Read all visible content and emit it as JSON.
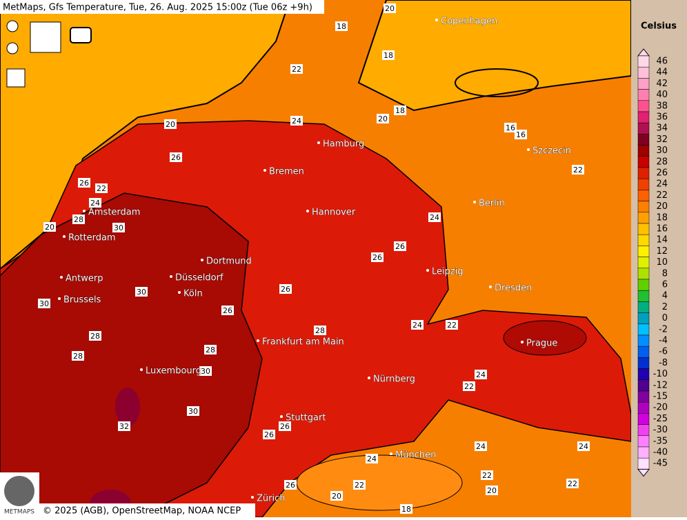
{
  "header": {
    "title": "MetMaps, Gfs Temperature, Tue, 26. Aug. 2025 15:00z (Tue 06z +9h)"
  },
  "footer": "© 2025 (AGB), OpenStreetMap, NOAA NCEP",
  "logo": "METMAPS",
  "legend": {
    "unit": "Celsius",
    "entries": [
      {
        "value": 46,
        "color": "#ffd8e8"
      },
      {
        "value": 44,
        "color": "#ffc0d8"
      },
      {
        "value": 42,
        "color": "#ffa0c8"
      },
      {
        "value": 40,
        "color": "#ff80b0"
      },
      {
        "value": 38,
        "color": "#ff5090"
      },
      {
        "value": 36,
        "color": "#e02070"
      },
      {
        "value": 34,
        "color": "#b01050"
      },
      {
        "value": 32,
        "color": "#800020"
      },
      {
        "value": 30,
        "color": "#a00000"
      },
      {
        "value": 28,
        "color": "#c80000"
      },
      {
        "value": 26,
        "color": "#e02000"
      },
      {
        "value": 24,
        "color": "#f04000"
      },
      {
        "value": 22,
        "color": "#ff6000"
      },
      {
        "value": 20,
        "color": "#ff8000"
      },
      {
        "value": 18,
        "color": "#ffa000"
      },
      {
        "value": 16,
        "color": "#ffc000"
      },
      {
        "value": 14,
        "color": "#ffd800"
      },
      {
        "value": 12,
        "color": "#fff000"
      },
      {
        "value": 10,
        "color": "#e0f000"
      },
      {
        "value": 8,
        "color": "#b0e000"
      },
      {
        "value": 6,
        "color": "#60d000"
      },
      {
        "value": 4,
        "color": "#20c030"
      },
      {
        "value": 2,
        "color": "#00b080"
      },
      {
        "value": 0,
        "color": "#00a0c0"
      },
      {
        "value": -2,
        "color": "#00c0ff"
      },
      {
        "value": -4,
        "color": "#0090ff"
      },
      {
        "value": -6,
        "color": "#0060f0"
      },
      {
        "value": -8,
        "color": "#0030d0"
      },
      {
        "value": -10,
        "color": "#2000b0"
      },
      {
        "value": -12,
        "color": "#500090"
      },
      {
        "value": -15,
        "color": "#8000a0"
      },
      {
        "value": -20,
        "color": "#b000c0"
      },
      {
        "value": -25,
        "color": "#d000e0"
      },
      {
        "value": -30,
        "color": "#f040f0"
      },
      {
        "value": -35,
        "color": "#ff80ff"
      },
      {
        "value": -40,
        "color": "#ffb0ff"
      },
      {
        "value": -45,
        "color": "#ffe0ff"
      }
    ]
  },
  "cities": [
    "Copenhagen",
    "Hamburg",
    "Szczecin",
    "Bremen",
    "Berlin",
    "Amsterdam",
    "Hannover",
    "Rotterdam",
    "Dortmund",
    "Leipzig",
    "Antwerp",
    "Düsseldorf",
    "Dresden",
    "Köln",
    "Brussels",
    "Frankfurt am Main",
    "Prague",
    "Luxembourg",
    "Nürnberg",
    "Stuttgart",
    "München",
    "Zürich"
  ],
  "contour_labels": [
    20,
    18,
    18,
    22,
    24,
    20,
    18,
    20,
    16,
    16,
    26,
    26,
    22,
    24,
    28,
    30,
    20,
    22,
    24,
    26,
    26,
    30,
    30,
    26,
    26,
    28,
    24,
    22,
    28,
    28,
    28,
    30,
    24,
    22,
    30,
    32,
    26,
    26,
    24,
    24,
    24,
    22,
    22,
    20,
    22,
    20,
    18,
    26
  ]
}
